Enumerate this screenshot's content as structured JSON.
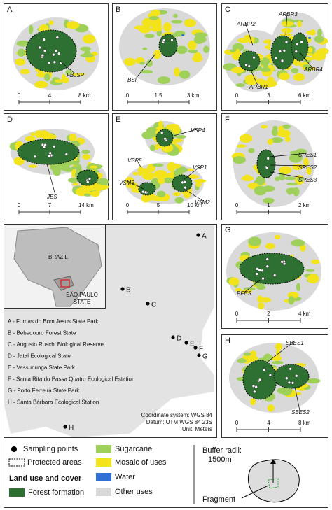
{
  "panels": [
    {
      "letter": "A",
      "labels": [
        "FBJSP"
      ],
      "scale": [
        "0",
        "4",
        "8 km"
      ]
    },
    {
      "letter": "B",
      "labels": [
        "BSF"
      ],
      "scale": [
        "0",
        "1.5",
        "3 km"
      ]
    },
    {
      "letter": "C",
      "labels": [
        "ARBR3",
        "ARBR2",
        "ARBR4",
        "ARBR1"
      ],
      "scale": [
        "0",
        "3",
        "6 km"
      ]
    },
    {
      "letter": "D",
      "labels": [
        "JES"
      ],
      "scale": [
        "0",
        "7",
        "14 km"
      ]
    },
    {
      "letter": "E",
      "labels": [
        "VSP4",
        "VSP5",
        "VSP1",
        "VSM3",
        "VSM2"
      ],
      "scale": [
        "0",
        "5",
        "10 km"
      ]
    },
    {
      "letter": "F",
      "labels": [
        "SRES1",
        "SRES2",
        "SRES3"
      ],
      "scale": [
        "0",
        "1",
        "2 km"
      ]
    },
    {
      "letter": "G",
      "labels": [
        "PFES"
      ],
      "scale": [
        "0",
        "2",
        "4 km"
      ]
    },
    {
      "letter": "H",
      "labels": [
        "SBES1",
        "SBES2"
      ],
      "scale": [
        "0",
        "4",
        "8 km"
      ]
    }
  ],
  "map": {
    "inset": {
      "country": "BRAZIL",
      "state": [
        "SÃO PAULO",
        "STATE"
      ]
    },
    "points": [
      "A",
      "B",
      "C",
      "D",
      "E",
      "F",
      "G",
      "H"
    ],
    "key": [
      "A - Furnas do Bom Jesus State Park",
      "B - Bebedouro Forest State",
      "C - Augusto Ruschi Biological Reserve",
      "D - Jataí Ecological State",
      "E - Vassununga State Park",
      "F - Santa Rita do Passa Quatro Ecological Estation",
      "G - Porto Ferreira State Park",
      "H - Santa Bárbara Ecological Station"
    ],
    "info": [
      "Coordinate system: WGS 84",
      "Datum: UTM WGS 84 23S",
      "Unit: Meters"
    ]
  },
  "legend": {
    "sampling_points": "Sampling points",
    "protected_areas": "Protected areas",
    "heading": "Land use and cover",
    "classes": [
      "Forest formation",
      "Sugarcane",
      "Mosaic of uses",
      "Water",
      "Other uses"
    ],
    "buffer": [
      "Buffer radii:",
      "1500m"
    ],
    "fragment": "Fragment"
  }
}
